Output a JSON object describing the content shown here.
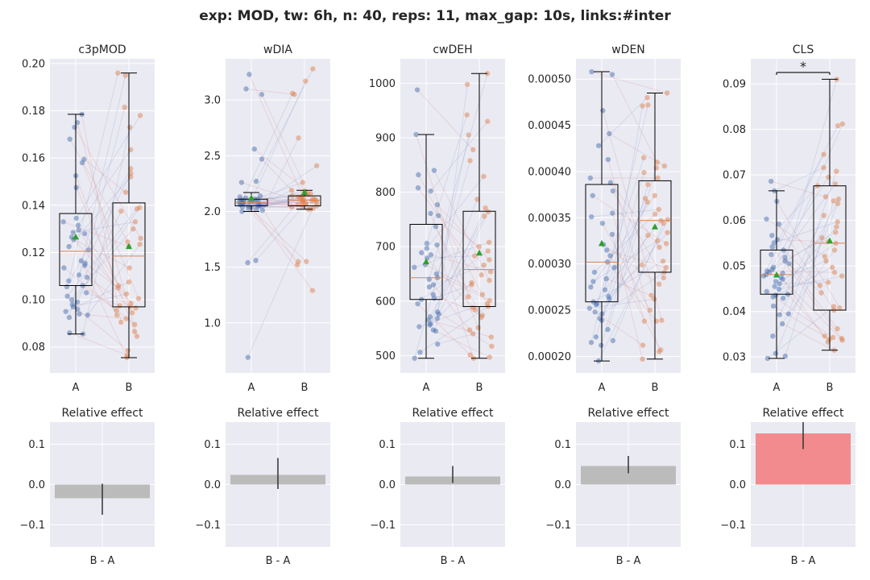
{
  "figure": {
    "title": "exp: MOD, tw: 6h, n: 40, reps: 11, max_gap: 10s, links:#inter"
  },
  "colors": {
    "panel_bg": "#EAEAF2",
    "grid": "#FFFFFF",
    "group_A": "#4C72B0",
    "group_B": "#DD8452",
    "link_up": "#8090C8",
    "link_down": "#D88080",
    "mean_marker": "#2CA02C",
    "median_line": "#DD8452",
    "bar_neutral": "#BBBBBB",
    "bar_significant": "#F28B8E"
  },
  "chart_data": [
    {
      "type": "box",
      "title": "c3pMOD",
      "categories": [
        "A",
        "B"
      ],
      "ylim": [
        0.069,
        0.202
      ],
      "yticks": [
        0.08,
        0.1,
        0.12,
        0.14,
        0.16,
        0.18,
        0.2
      ],
      "ytick_labels": [
        "0.08",
        "0.10",
        "0.12",
        "0.14",
        "0.16",
        "0.18",
        "0.20"
      ],
      "series": [
        {
          "name": "A",
          "whisker_low": 0.0855,
          "q1": 0.106,
          "median": 0.1205,
          "q3": 0.1365,
          "whisker_high": 0.1785,
          "mean": 0.1265,
          "points": [
            0.1785,
            0.175,
            0.173,
            0.168,
            0.1595,
            0.158,
            0.1525,
            0.1475,
            0.1345,
            0.133,
            0.1315,
            0.1295,
            0.1285,
            0.128,
            0.1265,
            0.1255,
            0.1225,
            0.121,
            0.1165,
            0.1155,
            0.1145,
            0.1135,
            0.1105,
            0.1095,
            0.108,
            0.106,
            0.1055,
            0.103,
            0.1015,
            0.1,
            0.099,
            0.098,
            0.097,
            0.096,
            0.095,
            0.094,
            0.0935,
            0.0925,
            0.086,
            0.0855
          ]
        },
        {
          "name": "B",
          "whisker_low": 0.0755,
          "q1": 0.097,
          "median": 0.1185,
          "q3": 0.141,
          "whisker_high": 0.196,
          "mean": 0.1225,
          "points": [
            0.196,
            0.195,
            0.1815,
            0.178,
            0.173,
            0.1635,
            0.1555,
            0.1535,
            0.152,
            0.1455,
            0.139,
            0.1385,
            0.1375,
            0.133,
            0.13,
            0.126,
            0.1245,
            0.1235,
            0.1225,
            0.1135,
            0.1075,
            0.106,
            0.105,
            0.1025,
            0.1005,
            0.0985,
            0.0975,
            0.097,
            0.0965,
            0.0955,
            0.0945,
            0.0935,
            0.092,
            0.0905,
            0.0895,
            0.0865,
            0.0845,
            0.0785,
            0.0765,
            0.0755
          ]
        }
      ],
      "effect": {
        "title": "Relative effect",
        "category": "B - A",
        "ylim": [
          -0.155,
          0.155
        ],
        "yticks": [
          -0.1,
          0.0,
          0.1
        ],
        "ytick_labels": [
          "−0.1",
          "0.0",
          "0.1"
        ],
        "value": -0.034,
        "ci": [
          -0.075,
          0.002
        ],
        "significant": false
      }
    },
    {
      "type": "box",
      "title": "wDIA",
      "categories": [
        "A",
        "B"
      ],
      "ylim": [
        0.55,
        3.37
      ],
      "yticks": [
        1.0,
        1.5,
        2.0,
        2.5,
        3.0
      ],
      "ytick_labels": [
        "1.0",
        "1.5",
        "2.0",
        "2.5",
        "3.0"
      ],
      "series": [
        {
          "name": "A",
          "whisker_low": 2.0,
          "q1": 2.05,
          "median": 2.08,
          "q3": 2.11,
          "whisker_high": 2.17,
          "mean": 2.12,
          "points": [
            3.23,
            3.1,
            3.05,
            2.56,
            2.47,
            2.27,
            2.26,
            2.14,
            2.13,
            2.12,
            2.11,
            2.11,
            2.1,
            2.1,
            2.1,
            2.09,
            2.09,
            2.09,
            2.08,
            2.08,
            2.08,
            2.08,
            2.07,
            2.07,
            2.07,
            2.06,
            2.06,
            2.06,
            2.05,
            2.05,
            2.05,
            2.04,
            2.04,
            2.03,
            2.02,
            2.01,
            2.0,
            1.56,
            1.54,
            0.69
          ]
        },
        {
          "name": "B",
          "whisker_low": 2.02,
          "q1": 2.05,
          "median": 2.1,
          "q3": 2.14,
          "whisker_high": 2.19,
          "mean": 2.17,
          "points": [
            3.28,
            3.17,
            3.06,
            3.05,
            2.66,
            2.41,
            2.26,
            2.19,
            2.18,
            2.17,
            2.16,
            2.15,
            2.14,
            2.14,
            2.13,
            2.13,
            2.12,
            2.12,
            2.11,
            2.11,
            2.1,
            2.1,
            2.1,
            2.09,
            2.09,
            2.08,
            2.08,
            2.07,
            2.07,
            2.06,
            2.05,
            2.05,
            2.04,
            2.03,
            2.02,
            2.02,
            1.55,
            1.55,
            1.52,
            1.29
          ]
        }
      ],
      "effect": {
        "title": "Relative effect",
        "category": "B - A",
        "ylim": [
          -0.155,
          0.155
        ],
        "yticks": [
          -0.1,
          0.0,
          0.1
        ],
        "ytick_labels": [
          "−0.1",
          "0.0",
          "0.1"
        ],
        "value": 0.024,
        "ci": [
          -0.011,
          0.066
        ],
        "significant": false
      }
    },
    {
      "type": "box",
      "title": "cwDEH",
      "categories": [
        "A",
        "B"
      ],
      "ylim": [
        468,
        1045
      ],
      "yticks": [
        500,
        600,
        700,
        800,
        900,
        1000
      ],
      "ytick_labels": [
        "500",
        "600",
        "700",
        "800",
        "900",
        "1000"
      ],
      "series": [
        {
          "name": "A",
          "whisker_low": 495,
          "q1": 603,
          "median": 643,
          "q3": 741,
          "whisker_high": 906,
          "mean": 672,
          "points": [
            988,
            906,
            840,
            832,
            808,
            802,
            777,
            761,
            757,
            737,
            706,
            703,
            697,
            689,
            685,
            679,
            667,
            662,
            650,
            643,
            640,
            630,
            626,
            612,
            605,
            603,
            595,
            580,
            576,
            571,
            568,
            565,
            558,
            556,
            553,
            547,
            545,
            521,
            506,
            495
          ]
        },
        {
          "name": "B",
          "whisker_low": 495,
          "q1": 590,
          "median": 658,
          "q3": 765,
          "whisker_high": 1018,
          "mean": 688,
          "points": [
            1018,
            998,
            942,
            930,
            905,
            878,
            858,
            829,
            787,
            771,
            764,
            756,
            708,
            700,
            692,
            683,
            676,
            666,
            654,
            648,
            638,
            634,
            630,
            612,
            608,
            601,
            595,
            590,
            588,
            584,
            574,
            570,
            551,
            547,
            540,
            534,
            517,
            501,
            497,
            495
          ]
        }
      ],
      "effect": {
        "title": "Relative effect",
        "category": "B - A",
        "ylim": [
          -0.155,
          0.155
        ],
        "yticks": [
          -0.1,
          0.0,
          0.1
        ],
        "ytick_labels": [
          "−0.1",
          "0.0",
          "0.1"
        ],
        "value": 0.02,
        "ci": [
          0.004,
          0.046
        ],
        "significant": false
      }
    },
    {
      "type": "box",
      "title": "wDEN",
      "categories": [
        "A",
        "B"
      ],
      "ylim": [
        0.000182,
        0.000522
      ],
      "yticks": [
        0.0002,
        0.00025,
        0.0003,
        0.00035,
        0.0004,
        0.00045,
        0.0005
      ],
      "ytick_labels": [
        "0.00020",
        "0.00025",
        "0.00030",
        "0.00035",
        "0.00040",
        "0.00045",
        "0.00050"
      ],
      "series": [
        {
          "name": "A",
          "whisker_low": 0.000195,
          "q1": 0.000259,
          "median": 0.000302,
          "q3": 0.000386,
          "whisker_high": 0.000508,
          "mean": 0.000322,
          "points": [
            0.000508,
            0.000505,
            0.000466,
            0.000441,
            0.000428,
            0.000413,
            0.000393,
            0.000388,
            0.000379,
            0.000374,
            0.000355,
            0.000351,
            0.000344,
            0.000332,
            0.000321,
            0.000315,
            0.000309,
            0.000302,
            0.000296,
            0.000291,
            0.000284,
            0.000281,
            0.000275,
            0.000272,
            0.000265,
            0.000262,
            0.000259,
            0.000257,
            0.000256,
            0.000252,
            0.000248,
            0.000246,
            0.000241,
            0.000239,
            0.000229,
            0.000221,
            0.000217,
            0.000215,
            0.000212,
            0.000195
          ]
        },
        {
          "name": "B",
          "whisker_low": 0.000197,
          "q1": 0.000291,
          "median": 0.000347,
          "q3": 0.00039,
          "whisker_high": 0.000485,
          "mean": 0.00034,
          "points": [
            0.000485,
            0.00048,
            0.000472,
            0.000471,
            0.000415,
            0.00041,
            0.000406,
            0.000404,
            0.000399,
            0.000393,
            0.000386,
            0.000374,
            0.000371,
            0.000367,
            0.000359,
            0.000354,
            0.000348,
            0.000347,
            0.000344,
            0.000334,
            0.000331,
            0.000325,
            0.000322,
            0.000318,
            0.000303,
            0.000299,
            0.000296,
            0.000291,
            0.000285,
            0.000278,
            0.000266,
            0.000262,
            0.00025,
            0.000239,
            0.000238,
            0.000238,
            0.000212,
            0.000207,
            0.000205,
            0.000197
          ]
        }
      ],
      "effect": {
        "title": "Relative effect",
        "category": "B - A",
        "ylim": [
          -0.155,
          0.155
        ],
        "yticks": [
          -0.1,
          0.0,
          0.1
        ],
        "ytick_labels": [
          "−0.1",
          "0.0",
          "0.1"
        ],
        "value": 0.046,
        "ci": [
          0.028,
          0.071
        ],
        "significant": false
      }
    },
    {
      "type": "box",
      "title": "CLS",
      "categories": [
        "A",
        "B"
      ],
      "ylim": [
        0.0265,
        0.0955
      ],
      "yticks": [
        0.03,
        0.04,
        0.05,
        0.06,
        0.07,
        0.08,
        0.09
      ],
      "ytick_labels": [
        "0.03",
        "0.04",
        "0.05",
        "0.06",
        "0.07",
        "0.08",
        "0.09"
      ],
      "series": [
        {
          "name": "A",
          "whisker_low": 0.0297,
          "q1": 0.0438,
          "median": 0.0481,
          "q3": 0.0535,
          "whisker_high": 0.0665,
          "mean": 0.048,
          "points": [
            0.0686,
            0.0665,
            0.0642,
            0.0603,
            0.0592,
            0.0567,
            0.0558,
            0.0551,
            0.0542,
            0.0535,
            0.0525,
            0.0519,
            0.0511,
            0.0505,
            0.0497,
            0.0492,
            0.0489,
            0.0486,
            0.0484,
            0.0481,
            0.0478,
            0.0475,
            0.0471,
            0.0466,
            0.0461,
            0.0455,
            0.0449,
            0.0444,
            0.0438,
            0.0436,
            0.0432,
            0.0429,
            0.0412,
            0.0395,
            0.0393,
            0.0373,
            0.0346,
            0.0308,
            0.0302,
            0.0297
          ]
        },
        {
          "name": "B",
          "whisker_low": 0.0315,
          "q1": 0.0403,
          "median": 0.055,
          "q3": 0.0676,
          "whisker_high": 0.091,
          "mean": 0.0555,
          "points": [
            0.091,
            0.0812,
            0.0808,
            0.0745,
            0.0716,
            0.0708,
            0.0695,
            0.068,
            0.0676,
            0.0652,
            0.0647,
            0.0643,
            0.0637,
            0.0611,
            0.0597,
            0.0586,
            0.0574,
            0.0562,
            0.0553,
            0.055,
            0.0535,
            0.0521,
            0.0511,
            0.0497,
            0.0486,
            0.0478,
            0.0464,
            0.0457,
            0.0441,
            0.0411,
            0.0408,
            0.0403,
            0.0362,
            0.0346,
            0.0343,
            0.0341,
            0.0339,
            0.0337,
            0.0333,
            0.0315
          ]
        }
      ],
      "significance": {
        "label": "*",
        "y": 0.0925
      },
      "effect": {
        "title": "Relative effect",
        "category": "B - A",
        "ylim": [
          -0.155,
          0.155
        ],
        "yticks": [
          -0.1,
          0.0,
          0.1
        ],
        "ytick_labels": [
          "−0.1",
          "0.0",
          "0.1"
        ],
        "value": 0.127,
        "ci": [
          0.088,
          0.155
        ],
        "significant": true
      }
    }
  ]
}
